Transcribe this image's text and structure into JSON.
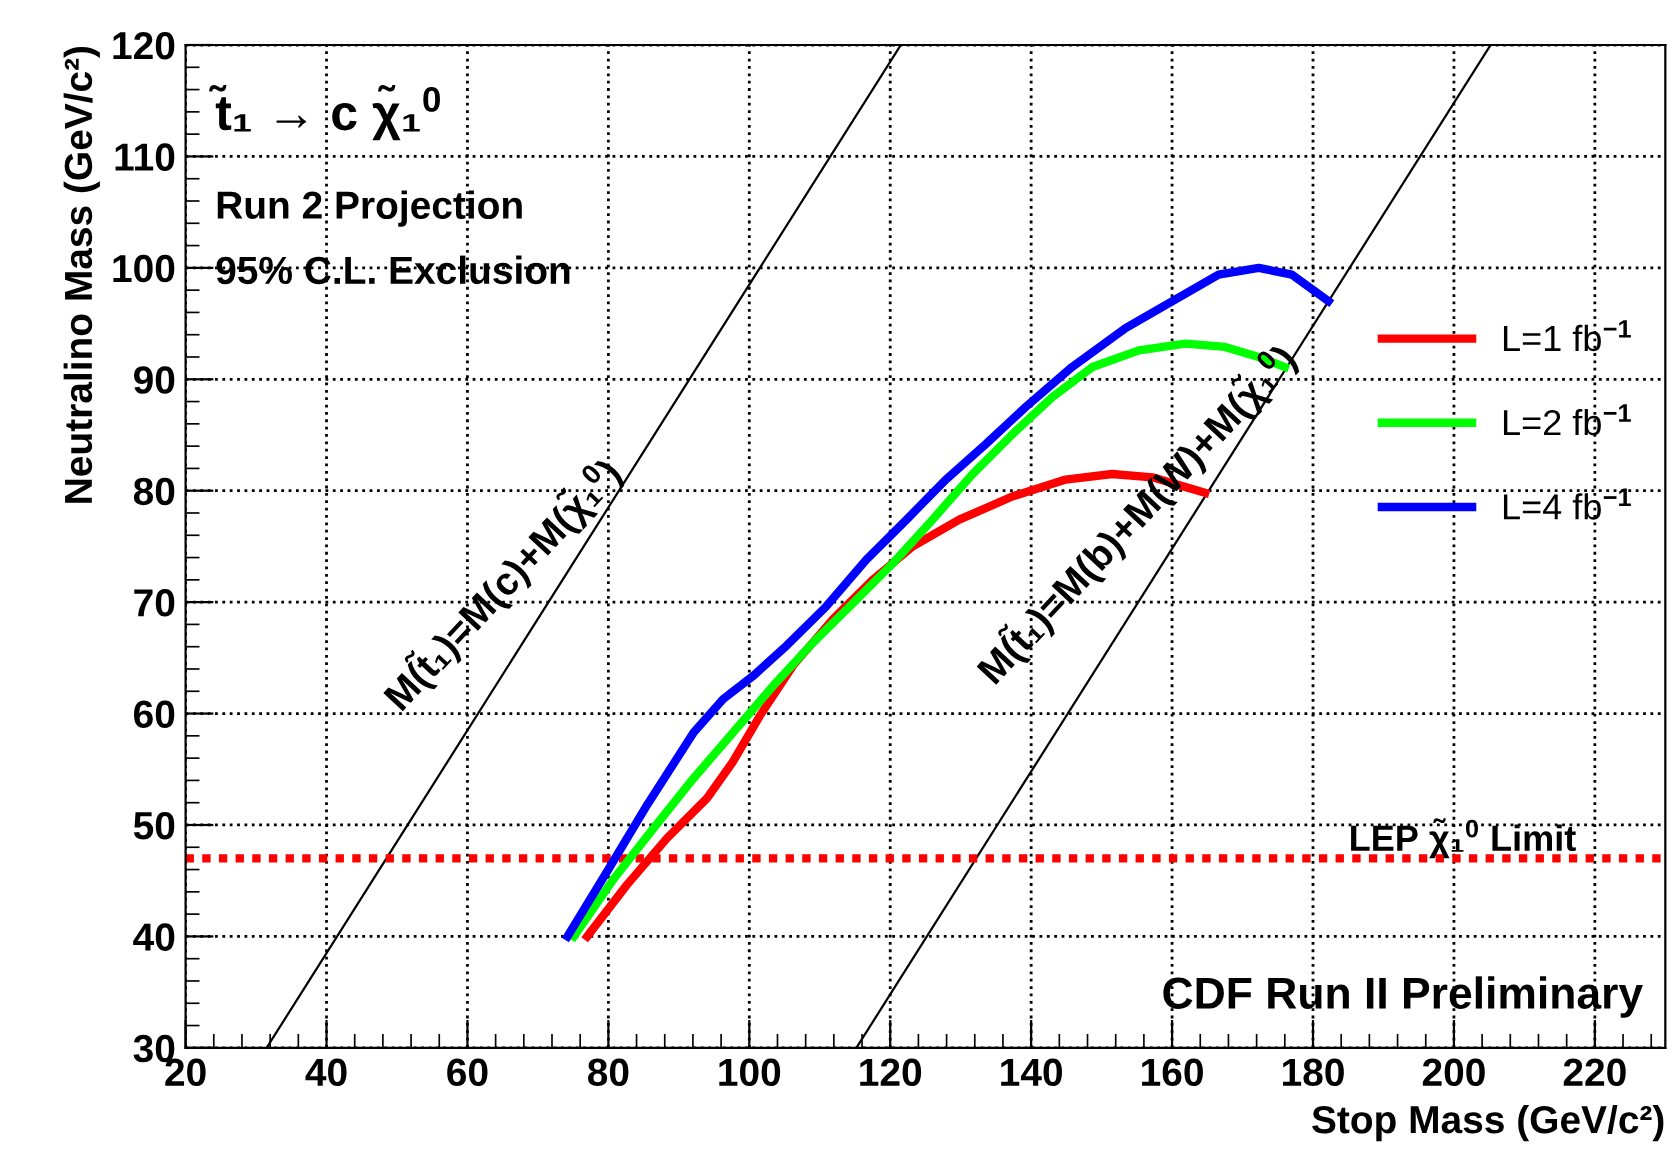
{
  "chart_data": {
    "type": "line",
    "xlabel": "Stop Mass (GeV/c²)",
    "ylabel": "Neutralino Mass (GeV/c²)",
    "xlim": [
      20,
      230
    ],
    "ylim": [
      30,
      120
    ],
    "xticks": [
      20,
      40,
      60,
      80,
      100,
      120,
      140,
      160,
      180,
      200,
      220
    ],
    "yticks": [
      30,
      40,
      50,
      60,
      70,
      80,
      90,
      100,
      110,
      120
    ],
    "grid": true,
    "legend": "right",
    "marker": "none",
    "line_style": "solid",
    "series": [
      {
        "name": "L=1 fb$^{−1}$",
        "color": "#ff0000",
        "x": [
          77.0,
          82.6,
          88.3,
          94.0,
          97.7,
          101.5,
          106.2,
          111.9,
          117.5,
          123.2,
          129.8,
          137.4,
          144.9,
          151.5,
          157.2,
          164.7
        ],
        "values": [
          40,
          44.6,
          48.8,
          52.4,
          55.7,
          59.8,
          64.3,
          68.5,
          72.0,
          75.0,
          77.4,
          79.5,
          81.0,
          81.5,
          81.2,
          79.8
        ]
      },
      {
        "name": "L=2 fb$^{−1}$",
        "color": "#00ff00",
        "x": [
          75.1,
          80.8,
          86.4,
          92.1,
          97.7,
          103.4,
          109.1,
          114.7,
          120.4,
          126.0,
          131.7,
          137.4,
          143.0,
          148.7,
          155.3,
          161.9,
          167.5,
          172.3,
          176.0
        ],
        "values": [
          40,
          45.2,
          49.7,
          54.2,
          58.3,
          62.5,
          66.4,
          69.9,
          73.5,
          77.4,
          81.5,
          85.1,
          88.4,
          91.1,
          92.6,
          93.2,
          92.9,
          92.0,
          91.1
        ]
      },
      {
        "name": "L=4 fb$^{−1}$",
        "color": "#0000ff",
        "x": [
          74.2,
          79.8,
          85.5,
          92.1,
          96.3,
          100.6,
          105.3,
          110.9,
          116.6,
          122.3,
          127.9,
          133.6,
          139.2,
          145.8,
          153.4,
          160.0,
          166.6,
          172.3,
          177.0,
          182.2
        ],
        "values": [
          40,
          45.8,
          51.8,
          58.3,
          61.3,
          63.4,
          66.1,
          69.6,
          73.8,
          77.4,
          81.0,
          84.2,
          87.5,
          91.1,
          94.6,
          97.0,
          99.4,
          100,
          99.4,
          97.0
        ]
      },
      {
        "color": "#000000",
        "x": [
          31.5,
          121.5
        ],
        "values": [
          30,
          120
        ]
      },
      {
        "color": "#000000",
        "x": [
          115.2,
          205.2
        ],
        "values": [
          30,
          120
        ]
      }
    ],
    "ref_lines": [
      {
        "axis": "y",
        "value": 47,
        "label": "LEP χ̃₁$^{0}$ Limit",
        "color": "#ff0000",
        "line_style": "dotted"
      }
    ],
    "annotations": [
      "t̃₁ → c χ̃₁$^{0}$",
      "Run 2 Projection",
      "95% C.L. Exclusion",
      "CDF Run II Preliminary",
      {
        "text": "M(t̃₁)=M(c)+M(χ̃₁$^{0}$)",
        "x": 70,
        "y": 68.5
      },
      {
        "text": "M(t̃₁)=M(b)+M(W)+M(χ̃₁$^{0}$)",
        "x": 160,
        "y": 74.8
      }
    ]
  }
}
